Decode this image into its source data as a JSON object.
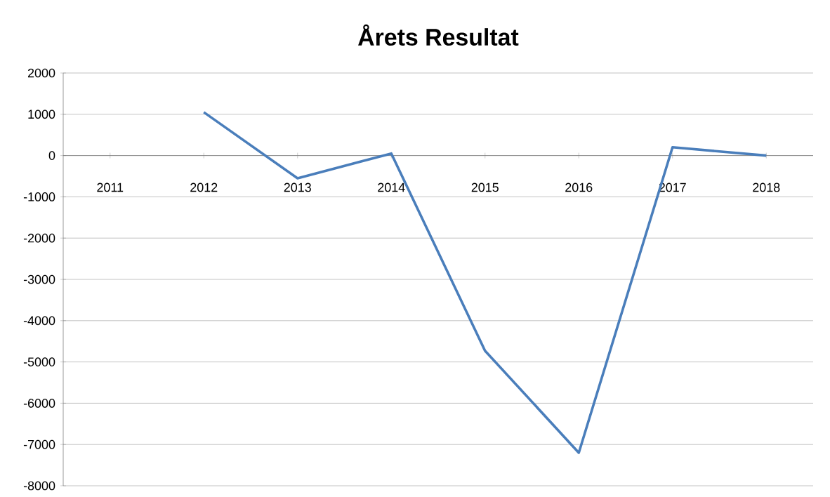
{
  "chart_data": {
    "type": "line",
    "title": "Årets Resultat",
    "categories": [
      "2011",
      "2012",
      "2013",
      "2014",
      "2015",
      "2016",
      "2017",
      "2018"
    ],
    "series": [
      {
        "color": "#4a7ebb",
        "values": [
          null,
          1050,
          -550,
          50,
          -4730,
          -7200,
          200,
          0
        ]
      }
    ],
    "ylim": [
      -8000,
      2000
    ],
    "yticks": [
      -8000,
      -7000,
      -6000,
      -5000,
      -4000,
      -3000,
      -2000,
      -1000,
      0,
      1000,
      2000
    ],
    "grid": "y",
    "marker": "none",
    "line_style": "solid"
  }
}
